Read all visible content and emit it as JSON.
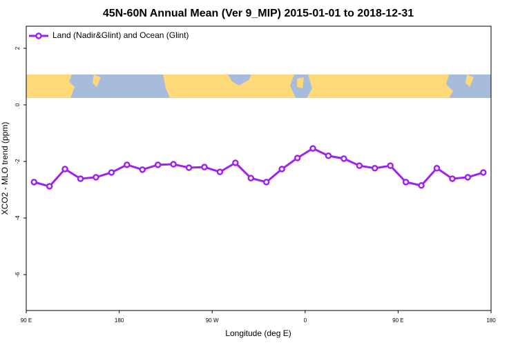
{
  "chart_data": {
    "type": "line",
    "title": "45N-60N Annual Mean (Ver 9_MIP)   2015-01-01 to 2018-12-31",
    "xlabel": "Longitude (deg E)",
    "ylabel": "XCO2 - MLO trend (ppm)",
    "x": [
      97.5,
      112.5,
      127.5,
      142.5,
      157.5,
      172.5,
      187.5,
      202.5,
      217.5,
      232.5,
      247.5,
      262.5,
      277.5,
      292.5,
      307.5,
      322.5,
      337.5,
      352.5,
      367.5,
      382.5,
      397.5,
      412.5,
      427.5,
      442.5,
      457.5,
      472.5,
      487.5,
      502.5,
      517.5,
      532.5
    ],
    "series": [
      {
        "name": "Land (Nadir&Glint) and Ocean (Glint)",
        "color": "#a020f0",
        "values": [
          -2.73,
          -2.88,
          -2.27,
          -2.61,
          -2.56,
          -2.39,
          -2.12,
          -2.29,
          -2.12,
          -2.1,
          -2.22,
          -2.2,
          -2.37,
          -2.05,
          -2.59,
          -2.73,
          -2.27,
          -1.88,
          -1.54,
          -1.8,
          -1.9,
          -2.15,
          -2.24,
          -2.15,
          -2.73,
          -2.85,
          -2.24,
          -2.61,
          -2.56,
          -2.39
        ]
      }
    ],
    "xlim": [
      90,
      540
    ],
    "xticks": [
      {
        "value": 90,
        "label": "90 E"
      },
      {
        "value": 180,
        "label": "180"
      },
      {
        "value": 270,
        "label": "90 W"
      },
      {
        "value": 360,
        "label": "0"
      },
      {
        "value": 450,
        "label": "90 E"
      },
      {
        "value": 540,
        "label": "180"
      }
    ],
    "ylim": [
      -7.27,
      2.78
    ],
    "yticks": [
      -6,
      -4,
      -2,
      0,
      2
    ],
    "legend": "top-left"
  }
}
